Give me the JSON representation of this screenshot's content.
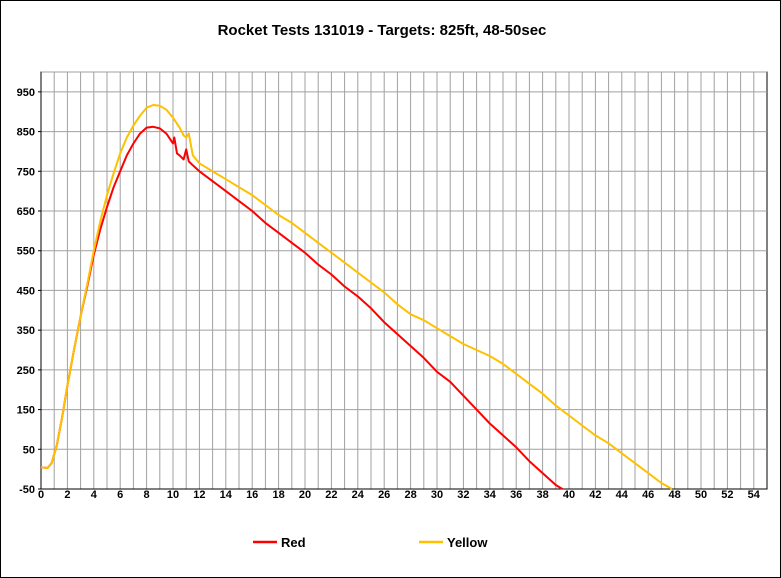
{
  "chart_data": {
    "type": "line",
    "title": "Rocket Tests 131019 - Targets: 825ft, 48-50sec",
    "xlabel": "",
    "ylabel": "",
    "xlim": [
      0,
      55
    ],
    "ylim": [
      -50,
      1000
    ],
    "x_ticks": [
      0,
      2,
      4,
      6,
      8,
      10,
      12,
      14,
      16,
      18,
      20,
      22,
      24,
      26,
      28,
      30,
      32,
      34,
      36,
      38,
      40,
      42,
      44,
      46,
      48,
      50,
      52,
      54
    ],
    "y_ticks": [
      -50,
      50,
      150,
      250,
      350,
      450,
      550,
      650,
      750,
      850,
      950
    ],
    "grid": true,
    "legend_position": "bottom",
    "series": [
      {
        "name": "Red",
        "color": "#ff0000",
        "points": [
          [
            0,
            5
          ],
          [
            0.5,
            3
          ],
          [
            0.8,
            15
          ],
          [
            1.2,
            60
          ],
          [
            1.6,
            130
          ],
          [
            2,
            210
          ],
          [
            2.5,
            300
          ],
          [
            3,
            385
          ],
          [
            3.5,
            460
          ],
          [
            4,
            540
          ],
          [
            4.5,
            605
          ],
          [
            5,
            660
          ],
          [
            5.5,
            710
          ],
          [
            6,
            750
          ],
          [
            6.5,
            790
          ],
          [
            7,
            820
          ],
          [
            7.5,
            845
          ],
          [
            8,
            860
          ],
          [
            8.5,
            862
          ],
          [
            9,
            858
          ],
          [
            9.5,
            845
          ],
          [
            10,
            820
          ],
          [
            10.1,
            835
          ],
          [
            10.3,
            795
          ],
          [
            10.5,
            790
          ],
          [
            10.8,
            780
          ],
          [
            11,
            805
          ],
          [
            11.2,
            775
          ],
          [
            11.5,
            765
          ],
          [
            12,
            750
          ],
          [
            13,
            725
          ],
          [
            14,
            700
          ],
          [
            15,
            675
          ],
          [
            16,
            650
          ],
          [
            17,
            620
          ],
          [
            18,
            595
          ],
          [
            19,
            570
          ],
          [
            20,
            545
          ],
          [
            21,
            515
          ],
          [
            22,
            490
          ],
          [
            23,
            460
          ],
          [
            24,
            435
          ],
          [
            25,
            405
          ],
          [
            26,
            370
          ],
          [
            27,
            340
          ],
          [
            28,
            310
          ],
          [
            29,
            280
          ],
          [
            30,
            245
          ],
          [
            31,
            220
          ],
          [
            32,
            185
          ],
          [
            33,
            150
          ],
          [
            34,
            115
          ],
          [
            35,
            85
          ],
          [
            36,
            55
          ],
          [
            37,
            20
          ],
          [
            38,
            -10
          ],
          [
            39,
            -40
          ],
          [
            39.5,
            -50
          ]
        ]
      },
      {
        "name": "Yellow",
        "color": "#ffc000",
        "points": [
          [
            0,
            5
          ],
          [
            0.5,
            3
          ],
          [
            0.8,
            15
          ],
          [
            1.2,
            60
          ],
          [
            1.6,
            130
          ],
          [
            2,
            210
          ],
          [
            2.5,
            300
          ],
          [
            3,
            385
          ],
          [
            3.5,
            465
          ],
          [
            4,
            550
          ],
          [
            4.5,
            625
          ],
          [
            5,
            690
          ],
          [
            5.5,
            745
          ],
          [
            6,
            795
          ],
          [
            6.5,
            835
          ],
          [
            7,
            865
          ],
          [
            7.5,
            890
          ],
          [
            8,
            910
          ],
          [
            8.5,
            917
          ],
          [
            9,
            915
          ],
          [
            9.5,
            905
          ],
          [
            10,
            885
          ],
          [
            10.5,
            860
          ],
          [
            10.8,
            840
          ],
          [
            11,
            835
          ],
          [
            11.2,
            845
          ],
          [
            11.5,
            790
          ],
          [
            12,
            770
          ],
          [
            13,
            750
          ],
          [
            14,
            730
          ],
          [
            15,
            710
          ],
          [
            16,
            690
          ],
          [
            17,
            665
          ],
          [
            18,
            640
          ],
          [
            19,
            620
          ],
          [
            20,
            595
          ],
          [
            21,
            570
          ],
          [
            22,
            545
          ],
          [
            23,
            520
          ],
          [
            24,
            495
          ],
          [
            25,
            470
          ],
          [
            26,
            445
          ],
          [
            27,
            415
          ],
          [
            28,
            390
          ],
          [
            29,
            375
          ],
          [
            30,
            355
          ],
          [
            31,
            335
          ],
          [
            32,
            315
          ],
          [
            33,
            300
          ],
          [
            34,
            285
          ],
          [
            35,
            265
          ],
          [
            36,
            240
          ],
          [
            37,
            215
          ],
          [
            38,
            190
          ],
          [
            39,
            160
          ],
          [
            40,
            135
          ],
          [
            41,
            110
          ],
          [
            42,
            85
          ],
          [
            43,
            65
          ],
          [
            44,
            40
          ],
          [
            45,
            15
          ],
          [
            46,
            -10
          ],
          [
            47,
            -35
          ],
          [
            47.8,
            -50
          ]
        ]
      }
    ]
  }
}
